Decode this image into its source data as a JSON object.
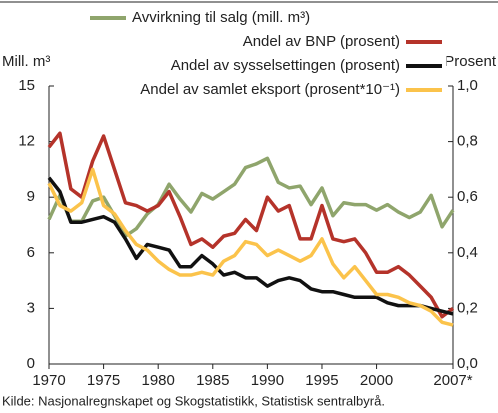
{
  "chart_data": {
    "type": "line",
    "y_label": "Mill. m³",
    "y2_label": "Prosent",
    "source": "Kilde: Nasjonalregnskapet og Skogstatistikk, Statistisk sentralbyrå.",
    "x": [
      1970,
      1971,
      1972,
      1973,
      1974,
      1975,
      1976,
      1977,
      1978,
      1979,
      1980,
      1981,
      1982,
      1983,
      1984,
      1985,
      1986,
      1987,
      1988,
      1989,
      1990,
      1991,
      1992,
      1993,
      1994,
      1995,
      1996,
      1997,
      1998,
      1999,
      2000,
      2001,
      2002,
      2003,
      2004,
      2005,
      2006,
      2007
    ],
    "xlim": [
      1970,
      2007
    ],
    "xticks": [
      1970,
      1975,
      1980,
      1985,
      1990,
      1995,
      2000,
      {
        "value": 2007,
        "label": "2007*"
      }
    ],
    "ylim": [
      0,
      15
    ],
    "yticks": [
      0,
      3,
      6,
      9,
      12,
      15
    ],
    "y2lim": [
      0,
      1
    ],
    "y2ticks": [
      {
        "value": 0,
        "label": "0,0"
      },
      {
        "value": 0.2,
        "label": "0,2"
      },
      {
        "value": 0.4,
        "label": "0,4"
      },
      {
        "value": 0.6,
        "label": "0,6"
      },
      {
        "value": 0.8,
        "label": "0,8"
      },
      {
        "value": 1,
        "label": "1,0"
      }
    ],
    "series": [
      {
        "name": "Avvirkning til salg (mill. m³)",
        "color": "#8fa56c",
        "axis": "y",
        "values": [
          7.8,
          9.1,
          7.7,
          7.7,
          8.8,
          9.0,
          8.0,
          6.9,
          7.3,
          8.1,
          8.6,
          9.7,
          8.9,
          8.2,
          9.2,
          8.9,
          9.3,
          9.7,
          10.6,
          10.8,
          11.1,
          9.8,
          9.5,
          9.6,
          8.6,
          9.5,
          8.0,
          8.7,
          8.6,
          8.6,
          8.3,
          8.6,
          8.2,
          7.9,
          8.2,
          9.1,
          7.4,
          8.3
        ]
      },
      {
        "name": "Andel av BNP (prosent)",
        "color": "#b5332a",
        "axis": "y2",
        "values": [
          0.78,
          0.83,
          0.63,
          0.6,
          0.73,
          0.82,
          0.7,
          0.58,
          0.57,
          0.55,
          0.57,
          0.62,
          0.53,
          0.43,
          0.45,
          0.42,
          0.46,
          0.47,
          0.52,
          0.48,
          0.6,
          0.55,
          0.57,
          0.45,
          0.45,
          0.57,
          0.45,
          0.44,
          0.45,
          0.4,
          0.33,
          0.33,
          0.35,
          0.32,
          0.28,
          0.24,
          0.17,
          0.2
        ]
      },
      {
        "name": "Andel av sysselsettingen (prosent)",
        "color": "#111111",
        "axis": "y2",
        "values": [
          0.67,
          0.62,
          0.51,
          0.51,
          0.52,
          0.53,
          0.51,
          0.45,
          0.38,
          0.43,
          0.42,
          0.41,
          0.35,
          0.35,
          0.39,
          0.36,
          0.32,
          0.33,
          0.31,
          0.31,
          0.28,
          0.3,
          0.31,
          0.3,
          0.27,
          0.26,
          0.26,
          0.25,
          0.24,
          0.24,
          0.24,
          0.22,
          0.21,
          0.21,
          0.21,
          0.2,
          0.19,
          0.18
        ]
      },
      {
        "name": "Andel av samlet eksport (prosent*10⁻¹)",
        "color": "#fbc34b",
        "axis": "y2",
        "values": [
          0.65,
          0.57,
          0.55,
          0.58,
          0.7,
          0.57,
          0.54,
          0.48,
          0.43,
          0.41,
          0.37,
          0.34,
          0.32,
          0.32,
          0.33,
          0.32,
          0.37,
          0.39,
          0.44,
          0.43,
          0.39,
          0.41,
          0.39,
          0.37,
          0.39,
          0.45,
          0.36,
          0.31,
          0.35,
          0.3,
          0.25,
          0.25,
          0.24,
          0.22,
          0.21,
          0.19,
          0.15,
          0.14
        ]
      }
    ]
  }
}
